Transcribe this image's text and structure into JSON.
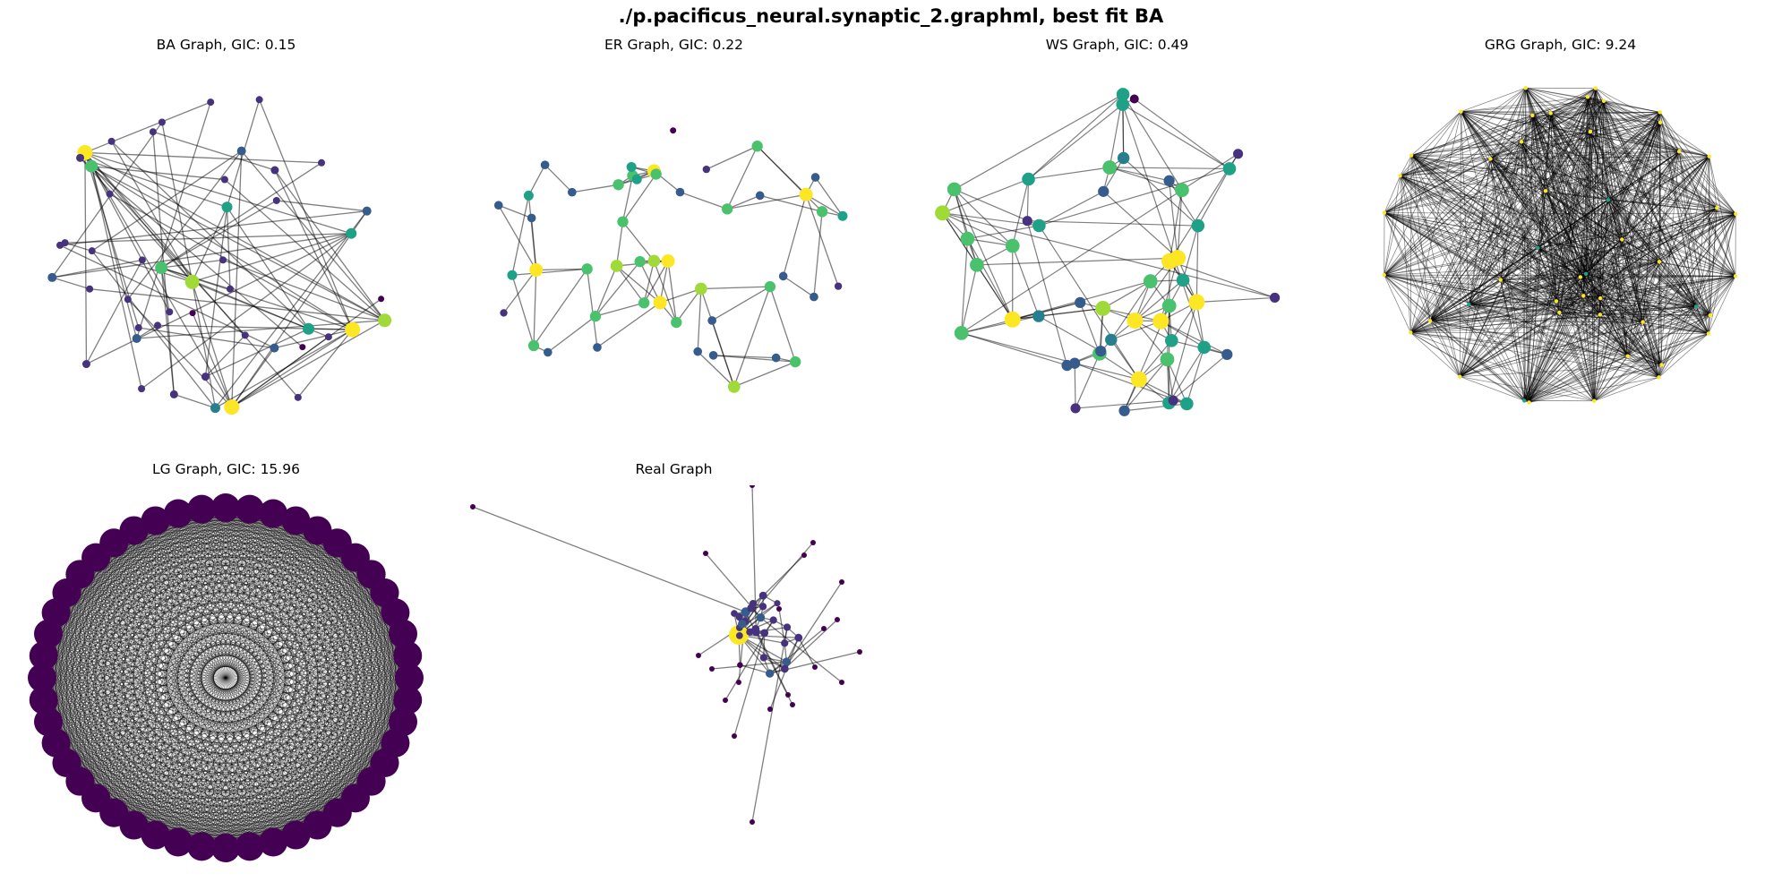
{
  "figure": {
    "title": "./p.pacificus_neural.synaptic_2.graphml, best fit BA"
  },
  "panels": [
    {
      "id": "ba",
      "title": "BA Graph, GIC: 0.15",
      "nodes": 48
    },
    {
      "id": "er",
      "title": "ER Graph, GIC: 0.22",
      "nodes": 48
    },
    {
      "id": "ws",
      "title": "WS Graph, GIC: 0.49",
      "nodes": 48
    },
    {
      "id": "grg",
      "title": "GRG Graph, GIC: 9.24",
      "nodes": 48
    },
    {
      "id": "lg",
      "title": "LG Graph, GIC: 15.96",
      "nodes": 48
    },
    {
      "id": "real",
      "title": "Real Graph",
      "nodes": 48
    }
  ],
  "colors": {
    "viridis": [
      "#440154",
      "#46327e",
      "#365c8d",
      "#277f8e",
      "#1fa187",
      "#4ac16d",
      "#a0da39",
      "#fde725"
    ],
    "edge": "#000000"
  }
}
